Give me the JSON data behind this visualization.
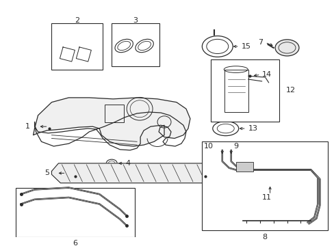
{
  "bg_color": "#ffffff",
  "line_color": "#2a2a2a",
  "lw": 0.8,
  "figsize": [
    4.89,
    3.6
  ],
  "dpi": 100,
  "xlim": [
    0,
    489
  ],
  "ylim": [
    0,
    360
  ]
}
